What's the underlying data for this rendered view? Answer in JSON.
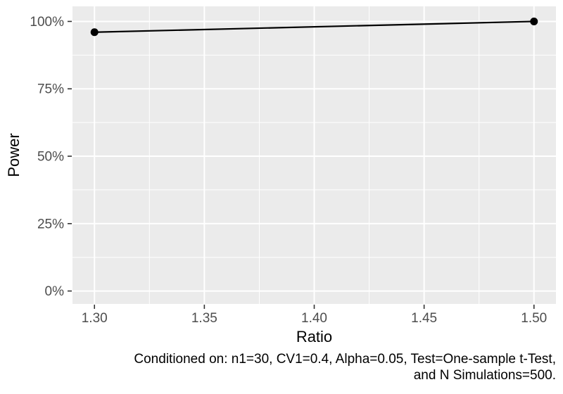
{
  "chart_data": {
    "type": "line",
    "x": [
      1.3,
      1.5
    ],
    "series": [
      {
        "name": "Power",
        "values": [
          96,
          100
        ]
      }
    ],
    "title": "",
    "xlabel": "Ratio",
    "ylabel": "Power",
    "x_ticks": [
      {
        "v": 1.3,
        "label": "1.30"
      },
      {
        "v": 1.35,
        "label": "1.35"
      },
      {
        "v": 1.4,
        "label": "1.40"
      },
      {
        "v": 1.45,
        "label": "1.45"
      },
      {
        "v": 1.5,
        "label": "1.50"
      }
    ],
    "y_ticks": [
      {
        "v": 0,
        "label": "0%"
      },
      {
        "v": 25,
        "label": "25%"
      },
      {
        "v": 50,
        "label": "50%"
      },
      {
        "v": 75,
        "label": "75%"
      },
      {
        "v": 100,
        "label": "100%"
      }
    ],
    "x_minor": [
      1.325,
      1.375,
      1.425,
      1.475
    ],
    "y_minor": [
      12.5,
      37.5,
      62.5,
      87.5
    ],
    "xlim": [
      1.29,
      1.51
    ],
    "ylim": [
      -4.8,
      105.6
    ],
    "grid": "on",
    "legend": "none",
    "caption_lines": [
      "Conditioned on: n1=30, CV1=0.4, Alpha=0.05, Test=One-sample t-Test,",
      "and N Simulations=500."
    ],
    "colors": {
      "background": "#FFFFFF",
      "panel_bg": "#EBEBEB",
      "grid_major": "#FFFFFF",
      "grid_minor": "#FFFFFF",
      "line": "#000000",
      "point": "#000000",
      "tick_label": "#4D4D4D",
      "tick_mark": "#333333",
      "axis_title": "#000000",
      "caption": "#000000"
    }
  }
}
